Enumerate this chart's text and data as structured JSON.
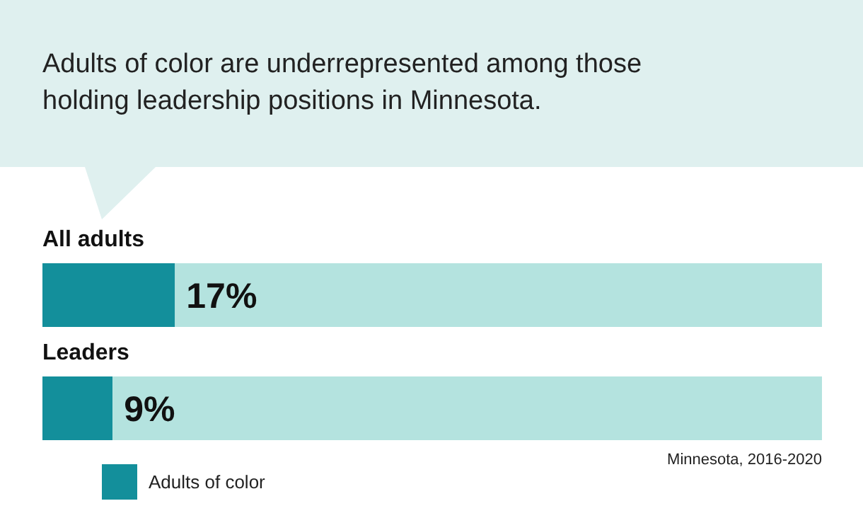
{
  "chart_data": {
    "type": "bar",
    "orientation": "horizontal",
    "stacked": true,
    "title": "Adults of color are underrepresented among those holding leadership positions in Minnesota.",
    "categories": [
      "All adults",
      "Leaders"
    ],
    "series": [
      {
        "name": "Adults of color",
        "color": "#138f9b",
        "values": [
          17,
          9
        ],
        "value_labels": [
          "17%",
          "9%"
        ]
      },
      {
        "color": "#b4e3df",
        "values": [
          83,
          91
        ]
      }
    ],
    "xlim": [
      0,
      100
    ],
    "tick_labels": "y",
    "grid": false,
    "legend": "bottom left",
    "annotations": [
      "Minnesota, 2016-2020"
    ]
  }
}
